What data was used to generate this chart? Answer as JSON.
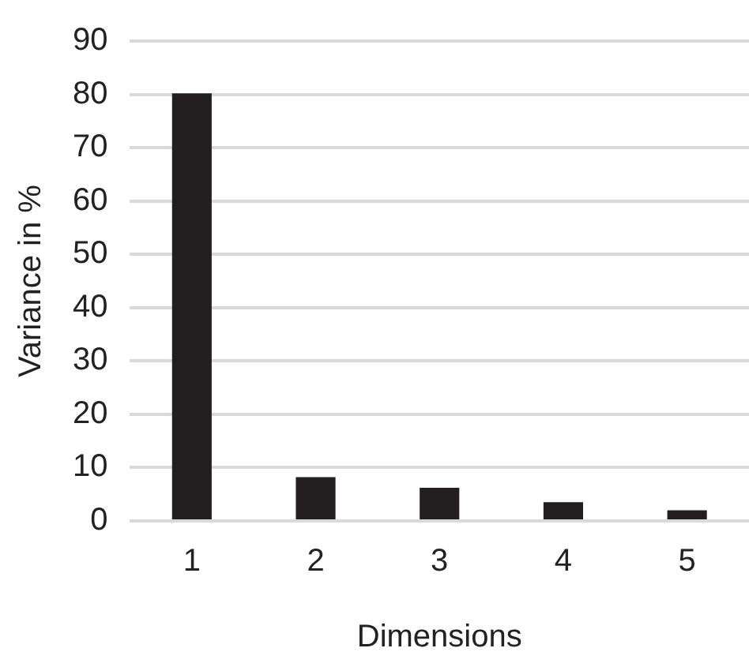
{
  "chart_data": {
    "type": "bar",
    "xlabel": "Dimensions",
    "ylabel": "Variance in %",
    "categories": [
      "1",
      "2",
      "3",
      "4",
      "5"
    ],
    "values": [
      80.2,
      8.2,
      6.2,
      3.5,
      2.0
    ],
    "color": "#231f20",
    "ylim": [
      0,
      90
    ],
    "yticks": [
      0,
      10,
      20,
      30,
      40,
      50,
      60,
      70,
      80,
      90
    ],
    "grid": "y",
    "legend": false
  }
}
